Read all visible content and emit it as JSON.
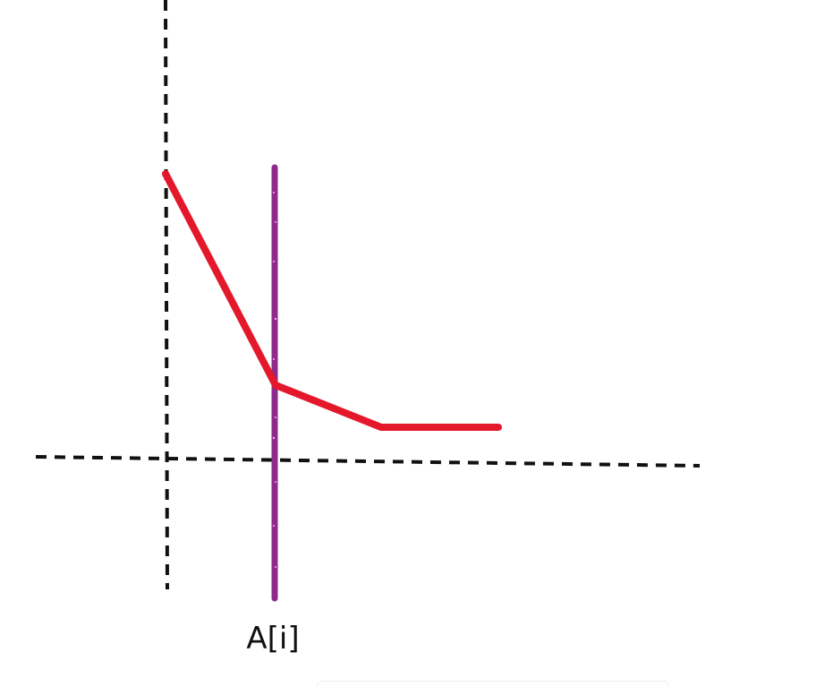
{
  "diagram": {
    "label": "A[i]",
    "colors": {
      "background": "#ffffff",
      "axis": "#111111",
      "bar": "#8e2a8c",
      "bar_sparkle": "#e8b6ef",
      "curve": "#e4182b"
    }
  }
}
